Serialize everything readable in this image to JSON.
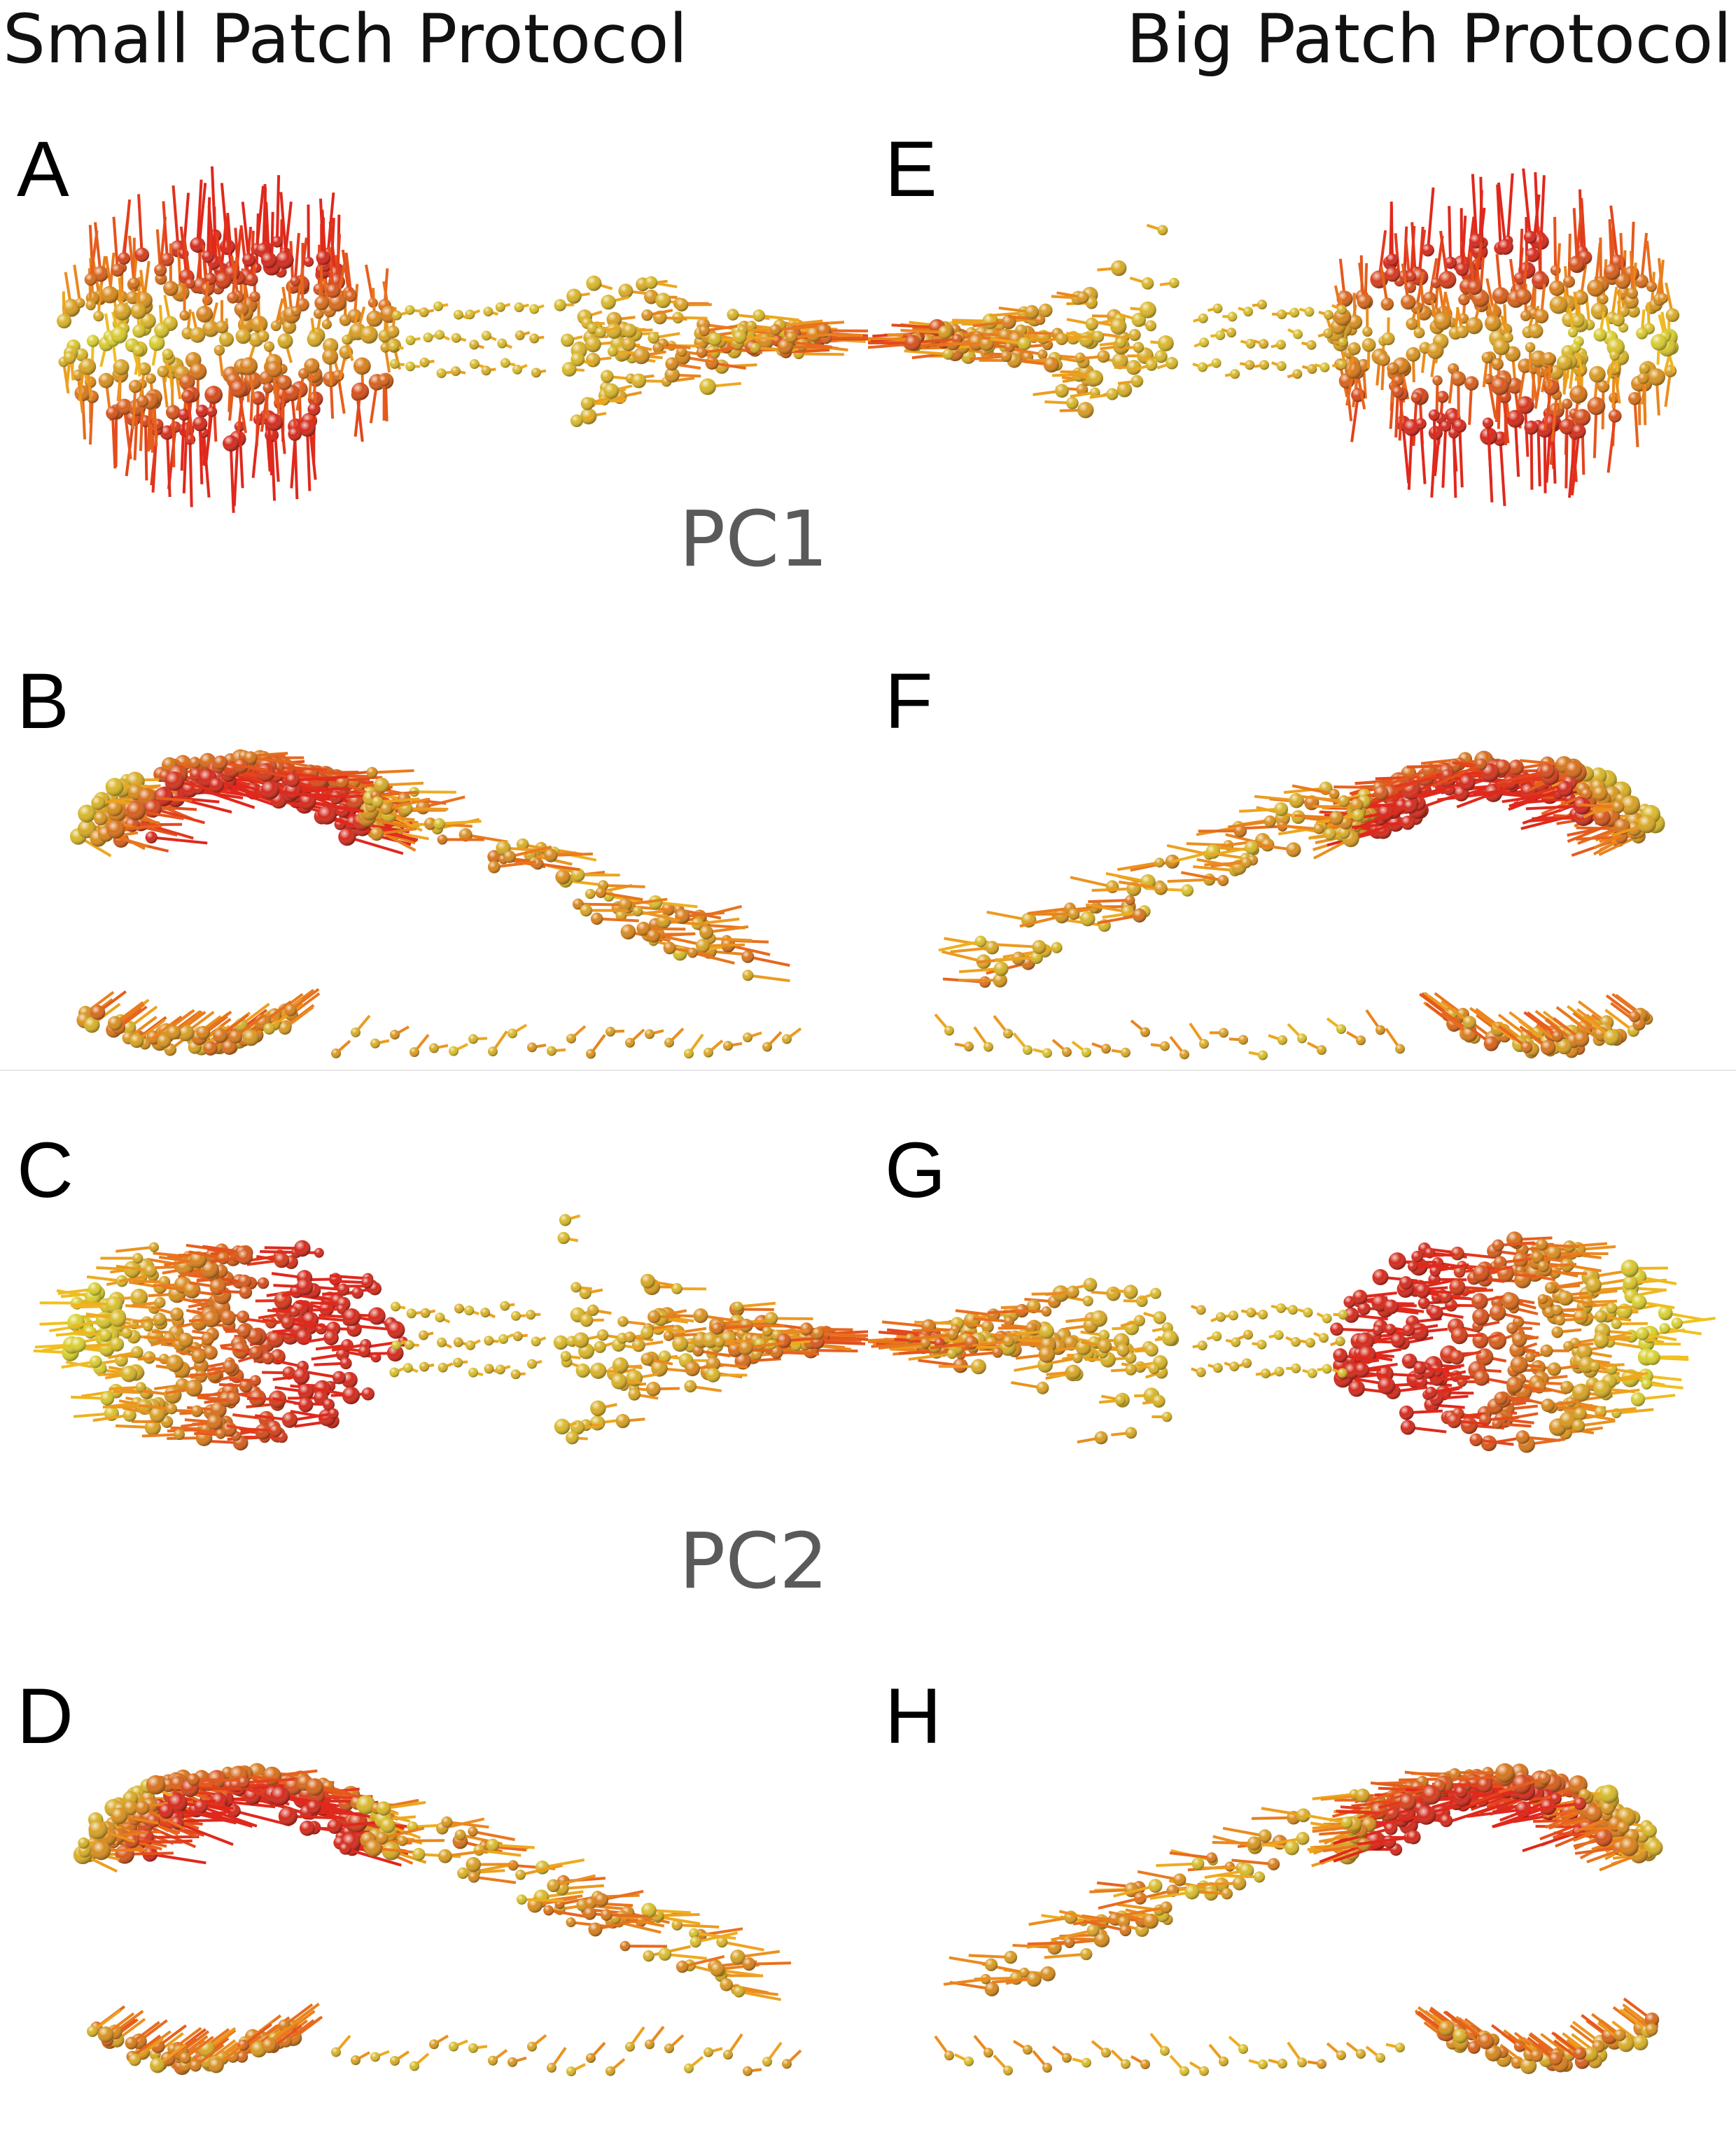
{
  "column_titles": {
    "left": "Small Patch Protocol",
    "right": "Big Patch Protocol"
  },
  "pc_labels": {
    "pc1": "PC1",
    "pc2": "PC2"
  },
  "panels": [
    {
      "letter": "A",
      "protocol": "small",
      "pc": "PC1",
      "view": "top"
    },
    {
      "letter": "B",
      "protocol": "small",
      "pc": "PC1",
      "view": "side"
    },
    {
      "letter": "C",
      "protocol": "small",
      "pc": "PC2",
      "view": "top"
    },
    {
      "letter": "D",
      "protocol": "small",
      "pc": "PC2",
      "view": "side"
    },
    {
      "letter": "E",
      "protocol": "big",
      "pc": "PC1",
      "view": "top"
    },
    {
      "letter": "F",
      "protocol": "big",
      "pc": "PC1",
      "view": "side"
    },
    {
      "letter": "G",
      "protocol": "big",
      "pc": "PC2",
      "view": "top"
    },
    {
      "letter": "H",
      "protocol": "big",
      "pc": "PC2",
      "view": "side"
    }
  ],
  "colors": {
    "low": "#d8d030",
    "mid": "#d8841c",
    "high": "#d42a1c",
    "vector_low": "#f0c020",
    "vector_high": "#e0281c"
  }
}
